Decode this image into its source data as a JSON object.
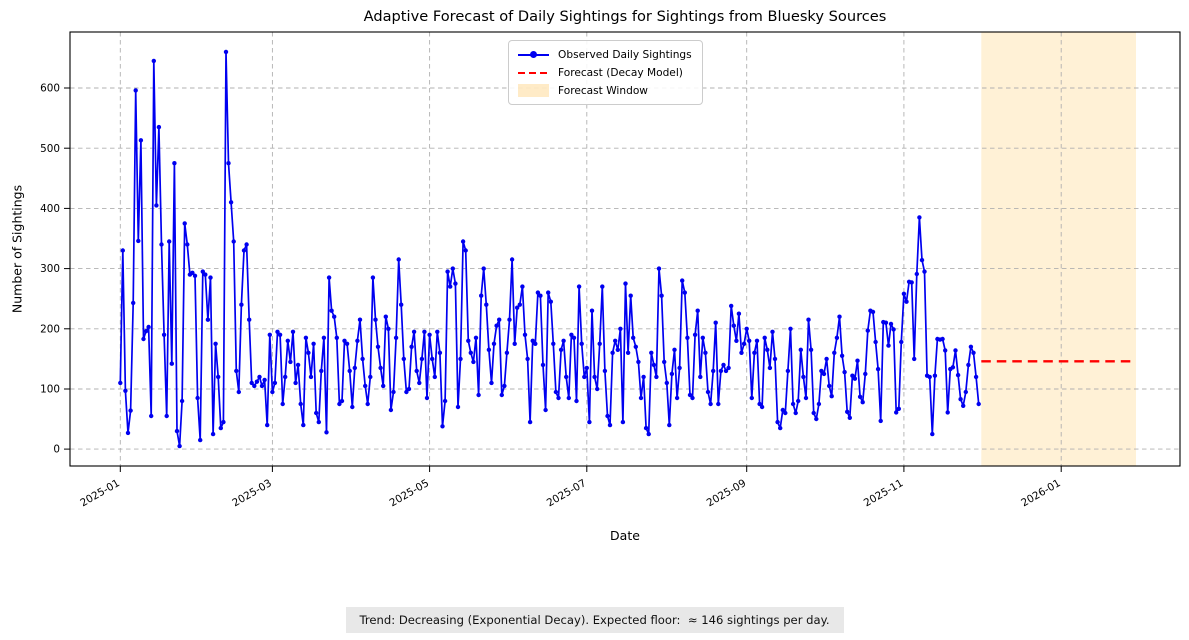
{
  "chart": {
    "title": "Adaptive Forecast of Daily Sightings for Sightings from Bluesky Sources",
    "xlabel": "Date",
    "ylabel": "Number of Sightings"
  },
  "legend": {
    "observed_label": "Observed Daily Sightings",
    "forecast_label": "Forecast (Decay Model)",
    "window_label": "Forecast Window"
  },
  "annotation": {
    "text": "Trend: Decreasing (Exponential Decay). Expected floor:  ≈ 146 sightings per day."
  },
  "colors": {
    "observed": "#0000f0",
    "forecast": "#ff0000",
    "window": "rgba(255,165,0,0.16)",
    "grid": "#b0b0b0",
    "frame": "#000000",
    "annotation_bg": "#e8e8e8"
  },
  "chart_data": {
    "type": "line",
    "title": "Adaptive Forecast of Daily Sightings for Sightings from Bluesky Sources",
    "xlabel": "Date",
    "ylabel": "Number of Sightings",
    "grid": true,
    "legend_position": "upper center",
    "start_date": "2025-01-01",
    "observed_series_name": "Observed Daily Sightings",
    "values": [
      110,
      330,
      97,
      27,
      64,
      243,
      596,
      346,
      513,
      183,
      196,
      203,
      55,
      645,
      405,
      535,
      340,
      190,
      55,
      345,
      142,
      475,
      30,
      5,
      80,
      375,
      340,
      290,
      293,
      288,
      85,
      15,
      295,
      290,
      215,
      285,
      25,
      175,
      120,
      35,
      45,
      660,
      475,
      410,
      345,
      130,
      95,
      240,
      330,
      340,
      215,
      110,
      105,
      112,
      120,
      105,
      115,
      40,
      190,
      95,
      110,
      195,
      190,
      75,
      120,
      180,
      145,
      195,
      110,
      140,
      75,
      40,
      185,
      160,
      120,
      175,
      60,
      45,
      130,
      185,
      28,
      285,
      230,
      220,
      185,
      75,
      80,
      180,
      175,
      130,
      70,
      135,
      180,
      215,
      150,
      105,
      75,
      120,
      285,
      215,
      170,
      135,
      105,
      220,
      200,
      65,
      95,
      185,
      315,
      240,
      150,
      95,
      100,
      170,
      195,
      130,
      110,
      150,
      195,
      85,
      190,
      150,
      120,
      195,
      160,
      38,
      80,
      295,
      270,
      300,
      275,
      70,
      150,
      345,
      330,
      180,
      160,
      145,
      185,
      90,
      255,
      300,
      240,
      165,
      110,
      175,
      205,
      215,
      90,
      105,
      160,
      215,
      315,
      175,
      235,
      240,
      270,
      190,
      150,
      45,
      180,
      175,
      260,
      255,
      140,
      65,
      260,
      245,
      175,
      95,
      85,
      165,
      180,
      120,
      85,
      190,
      185,
      80,
      270,
      175,
      120,
      135,
      45,
      230,
      120,
      100,
      175,
      270,
      130,
      55,
      40,
      160,
      180,
      165,
      200,
      45,
      275,
      160,
      255,
      185,
      170,
      145,
      85,
      120,
      35,
      25,
      160,
      140,
      120,
      300,
      255,
      145,
      110,
      40,
      125,
      165,
      85,
      135,
      280,
      260,
      185,
      90,
      85,
      190,
      230,
      120,
      185,
      160,
      95,
      75,
      130,
      210,
      75,
      130,
      140,
      130,
      135,
      238,
      205,
      180,
      225,
      160,
      175,
      200,
      180,
      85,
      160,
      180,
      75,
      70,
      185,
      165,
      135,
      195,
      150,
      45,
      35,
      65,
      60,
      130,
      200,
      75,
      60,
      80,
      165,
      120,
      85,
      215,
      165,
      60,
      50,
      75,
      130,
      125,
      150,
      105,
      88,
      160,
      185,
      220,
      155,
      128,
      62,
      52,
      122,
      117,
      147,
      87,
      78,
      125,
      197,
      230,
      228,
      178,
      133,
      47,
      211,
      210,
      172,
      208,
      199,
      61,
      67,
      178,
      258,
      245,
      278,
      277,
      150,
      291,
      385,
      314,
      295,
      122,
      120,
      25,
      122,
      183,
      182,
      183,
      164,
      61,
      133,
      136,
      164,
      123,
      83,
      72,
      95,
      140,
      170,
      160,
      120,
      75
    ],
    "forecast": {
      "name": "Forecast (Decay Model)",
      "start_date": "2025-12-01",
      "end_date": "2026-01-28",
      "value": 146
    },
    "forecast_window": {
      "name": "Forecast Window",
      "start_date": "2025-12-01",
      "end_date": "2026-01-30"
    },
    "expected_floor": 146,
    "trend": "Decreasing (Exponential Decay)",
    "x_ticks": [
      {
        "date": "2025-01-01",
        "label": "2025-01"
      },
      {
        "date": "2025-03-01",
        "label": "2025-03"
      },
      {
        "date": "2025-05-01",
        "label": "2025-05"
      },
      {
        "date": "2025-07-01",
        "label": "2025-07"
      },
      {
        "date": "2025-09-01",
        "label": "2025-09"
      },
      {
        "date": "2025-11-01",
        "label": "2025-11"
      },
      {
        "date": "2026-01-01",
        "label": "2026-01"
      }
    ],
    "y_ticks": [
      0,
      100,
      200,
      300,
      400,
      500,
      600
    ],
    "ylim": [
      -28,
      693
    ],
    "xlim_days": [
      -19.5,
      411.1
    ]
  }
}
